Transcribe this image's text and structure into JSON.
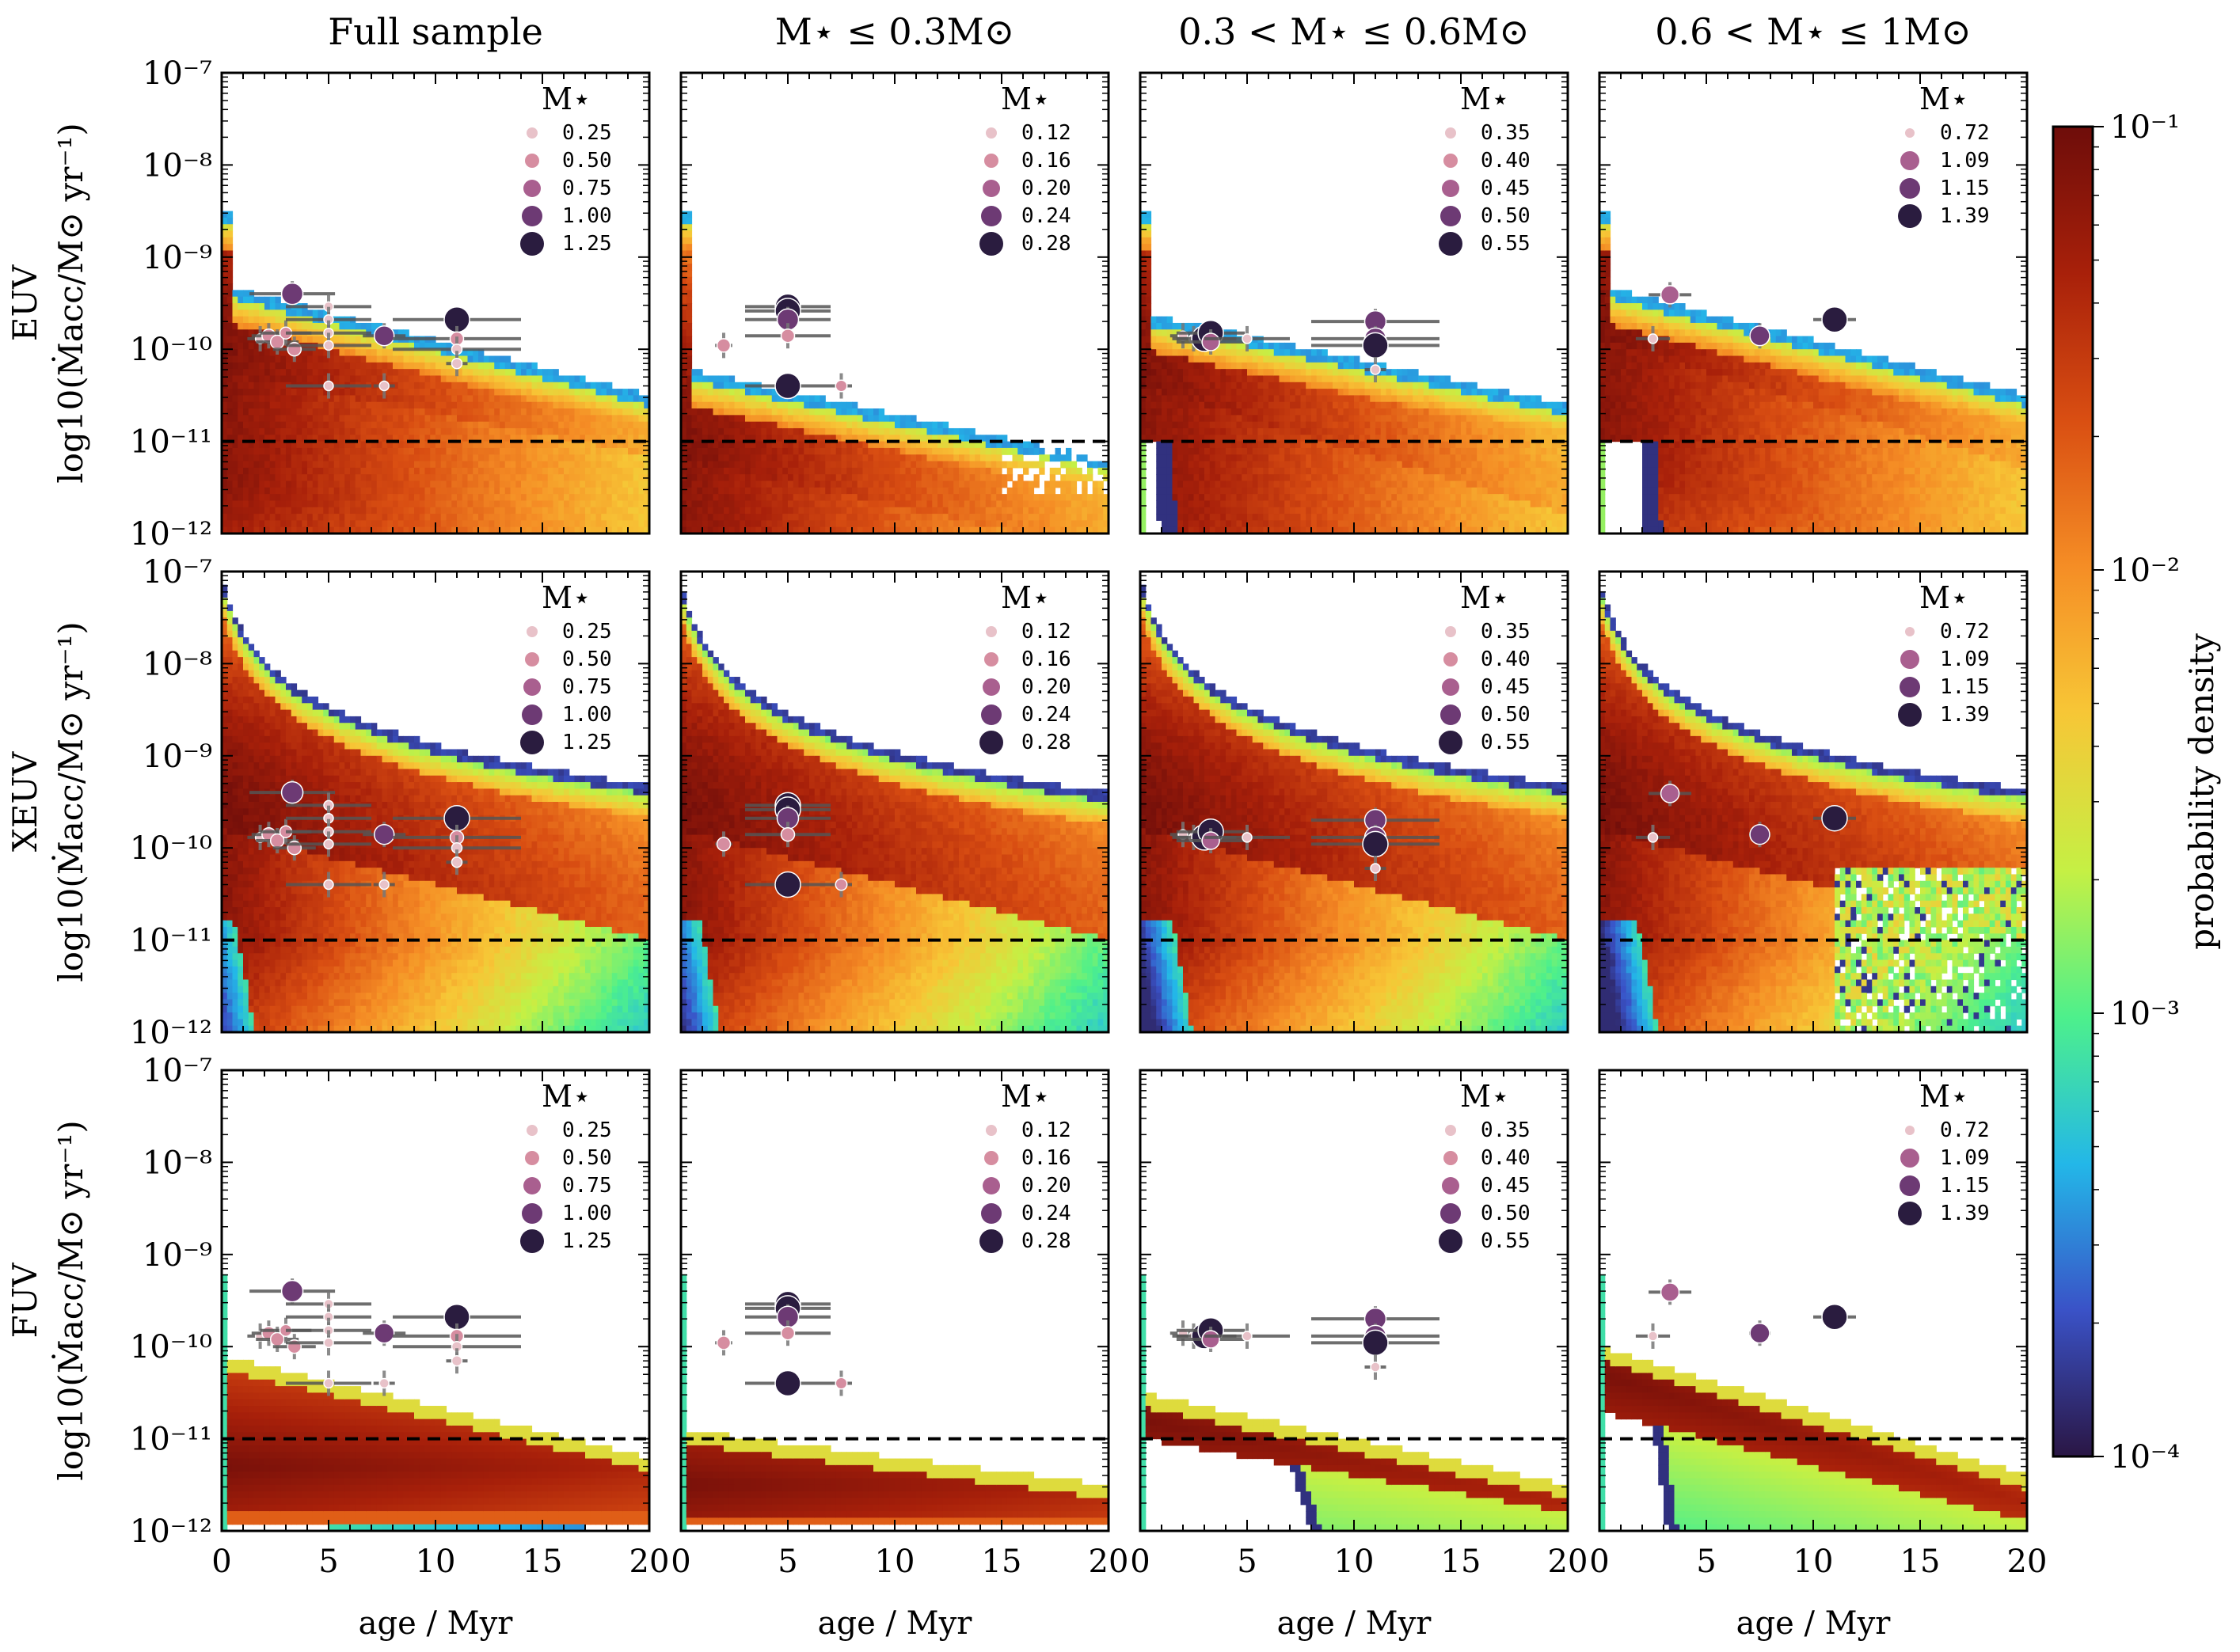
{
  "chart_data": {
    "type": "heatmap",
    "layout": "3 rows x 4 columns of panels with shared colorbar",
    "column_titles": [
      "Full sample",
      "M⋆ ≤ 0.3M⊙",
      "0.3 < M⋆ ≤ 0.6M⊙",
      "0.6 < M⋆ ≤ 1M⊙"
    ],
    "row_titles": [
      "EUV",
      "XEUV",
      "FUV"
    ],
    "ylabel": "log10(Ṁacc/M⊙ yr⁻¹)",
    "xlabel": "age / Myr",
    "xlim": [
      0,
      20
    ],
    "ylim": [
      1e-12,
      1e-07
    ],
    "yscale": "log",
    "x_ticks": [
      "0",
      "5",
      "10",
      "15",
      "20"
    ],
    "y_ticks": [
      "10⁻⁷",
      "10⁻⁸",
      "10⁻⁹",
      "10⁻¹⁰",
      "10⁻¹¹",
      "10⁻¹²"
    ],
    "reference_line": {
      "y": 1e-11,
      "style": "dashed"
    },
    "colorbar": {
      "label": "probability density",
      "scale": "log",
      "range": [
        0.0001,
        0.1
      ],
      "ticks": [
        "10⁻¹",
        "10⁻²",
        "10⁻³",
        "10⁻⁴"
      ],
      "colormap": [
        "#2a1644",
        "#3a52c7",
        "#23b7e8",
        "#4df08c",
        "#c5f044",
        "#f7c636",
        "#f58d25",
        "#d94e12",
        "#a8200a",
        "#6e0d0a"
      ]
    },
    "legend": {
      "title": "M⋆",
      "entries": [
        [
          "0.25",
          "0.50",
          "0.75",
          "1.00",
          "1.25"
        ],
        [
          "0.12",
          "0.16",
          "0.20",
          "0.24",
          "0.28"
        ],
        [
          "0.35",
          "0.40",
          "0.45",
          "0.50",
          "0.55"
        ],
        [
          "0.72",
          "1.09",
          "1.15",
          "1.39"
        ]
      ],
      "colors": [
        "#e8c2c9",
        "#d68da0",
        "#a95f8f",
        "#6d3a74",
        "#2a1c3f"
      ]
    },
    "observations": {
      "full": [
        {
          "age": 1.8,
          "acc": 1.3e-10,
          "xerr": 0.6,
          "m": 0.25
        },
        {
          "age": 2.2,
          "acc": 1.4e-10,
          "xerr": 0.8,
          "m": 0.5
        },
        {
          "age": 2.6,
          "acc": 1.2e-10,
          "xerr": 1.0,
          "m": 0.5
        },
        {
          "age": 3.0,
          "acc": 1.5e-10,
          "xerr": 1.2,
          "m": 0.4
        },
        {
          "age": 3.3,
          "acc": 4e-10,
          "xerr": 2.0,
          "m": 1.0
        },
        {
          "age": 3.4,
          "acc": 1e-10,
          "xerr": 1.0,
          "m": 0.5
        },
        {
          "age": 5.0,
          "acc": 2.9e-10,
          "xerr": 2.0,
          "m": 0.2
        },
        {
          "age": 5.0,
          "acc": 2.1e-10,
          "xerr": 2.0,
          "m": 0.2
        },
        {
          "age": 5.0,
          "acc": 1.5e-10,
          "xerr": 2.0,
          "m": 0.2
        },
        {
          "age": 5.0,
          "acc": 1.1e-10,
          "xerr": 2.0,
          "m": 0.2
        },
        {
          "age": 5.0,
          "acc": 4e-11,
          "xerr": 2.0,
          "m": 0.2
        },
        {
          "age": 7.6,
          "acc": 1.4e-10,
          "xerr": 1.0,
          "m": 0.9
        },
        {
          "age": 7.6,
          "acc": 4e-11,
          "xerr": 0.5,
          "m": 0.2
        },
        {
          "age": 11.0,
          "acc": 2.1e-10,
          "xerr": 3.0,
          "m": 1.39
        },
        {
          "age": 11.0,
          "acc": 1.3e-10,
          "xerr": 3.0,
          "m": 0.5
        },
        {
          "age": 11.0,
          "acc": 1e-10,
          "xerr": 3.0,
          "m": 0.3
        },
        {
          "age": 11.0,
          "acc": 7e-11,
          "xerr": 0.5,
          "m": 0.3
        }
      ],
      "low": [
        {
          "age": 2.0,
          "acc": 1.1e-10,
          "xerr": 0.4,
          "m": 0.16
        },
        {
          "age": 5.0,
          "acc": 2.9e-10,
          "xerr": 2.0,
          "m": 0.28
        },
        {
          "age": 5.0,
          "acc": 2.6e-10,
          "xerr": 2.0,
          "m": 0.28
        },
        {
          "age": 5.0,
          "acc": 2.1e-10,
          "xerr": 2.0,
          "m": 0.24
        },
        {
          "age": 5.0,
          "acc": 1.4e-10,
          "xerr": 2.0,
          "m": 0.16
        },
        {
          "age": 5.0,
          "acc": 4e-11,
          "xerr": 2.0,
          "m": 0.28
        },
        {
          "age": 7.5,
          "acc": 4e-11,
          "xerr": 0.5,
          "m": 0.14
        }
      ],
      "mid": [
        {
          "age": 2.0,
          "acc": 1.4e-10,
          "xerr": 0.6,
          "m": 0.35
        },
        {
          "age": 2.5,
          "acc": 1.3e-10,
          "xerr": 0.8,
          "m": 0.35
        },
        {
          "age": 3.0,
          "acc": 1.3e-10,
          "xerr": 1.5,
          "m": 0.55
        },
        {
          "age": 3.3,
          "acc": 1.5e-10,
          "xerr": 1.6,
          "m": 0.55
        },
        {
          "age": 3.3,
          "acc": 1.2e-10,
          "xerr": 1.6,
          "m": 0.45
        },
        {
          "age": 5.0,
          "acc": 1.3e-10,
          "xerr": 2.0,
          "m": 0.35
        },
        {
          "age": 11.0,
          "acc": 2e-10,
          "xerr": 3.0,
          "m": 0.5
        },
        {
          "age": 11.0,
          "acc": 1.3e-10,
          "xerr": 3.0,
          "m": 0.5
        },
        {
          "age": 11.0,
          "acc": 1.1e-10,
          "xerr": 3.0,
          "m": 0.55
        },
        {
          "age": 11.0,
          "acc": 6e-11,
          "xerr": 0.5,
          "m": 0.35
        }
      ],
      "high": [
        {
          "age": 2.5,
          "acc": 1.3e-10,
          "xerr": 0.8,
          "m": 0.72
        },
        {
          "age": 3.3,
          "acc": 3.9e-10,
          "xerr": 1.0,
          "m": 1.09
        },
        {
          "age": 7.5,
          "acc": 1.4e-10,
          "xerr": 0.5,
          "m": 1.15
        },
        {
          "age": 11.0,
          "acc": 2.1e-10,
          "xerr": 1.0,
          "m": 1.39
        }
      ]
    }
  }
}
